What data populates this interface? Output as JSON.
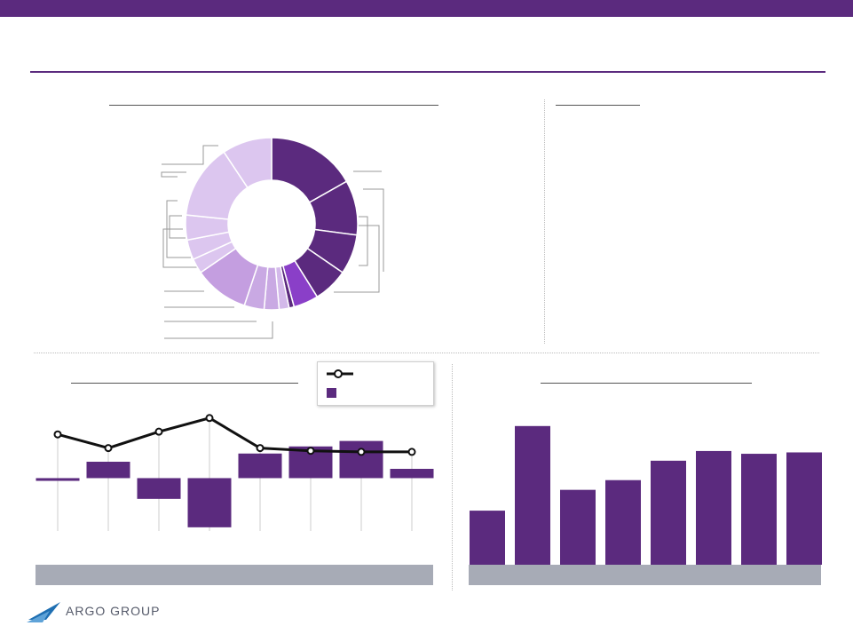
{
  "brand": {
    "logo_text": "ARGO GROUP",
    "colors": {
      "primary": "#5b2a7e",
      "band": "#a7abb6",
      "line": "#111111"
    }
  },
  "chart_data": [
    {
      "type": "pie",
      "variant": "donut",
      "values": [
        18,
        11,
        8,
        7,
        5,
        1,
        2,
        3,
        4,
        11,
        3,
        4,
        5,
        15,
        10
      ],
      "colors": [
        "#5b2a7e",
        "#5b2a7e",
        "#5b2a7e",
        "#5b2a7e",
        "#8a3fc8",
        "#5b2a7e",
        "#d3b9ea",
        "#c9a9e3",
        "#c9a9e3",
        "#c49ee0",
        "#dcc6ef",
        "#dcc6ef",
        "#dcc6ef",
        "#dcc6ef",
        "#dcc6ef"
      ]
    },
    {
      "type": "bar_line",
      "series": [
        {
          "type": "bar",
          "values": [
            -0.5,
            3,
            -3.8,
            -9,
            4.5,
            5.8,
            6.8,
            1.7
          ]
        },
        {
          "type": "line",
          "values": [
            8,
            5.5,
            8.5,
            11,
            5.5,
            5,
            4.8,
            4.8
          ]
        }
      ],
      "ylim": [
        -10,
        16
      ],
      "grid": "vertical"
    },
    {
      "type": "bar",
      "values": [
        39,
        100,
        54,
        61,
        75,
        82,
        80,
        81
      ],
      "ylim": [
        0,
        105
      ]
    }
  ]
}
